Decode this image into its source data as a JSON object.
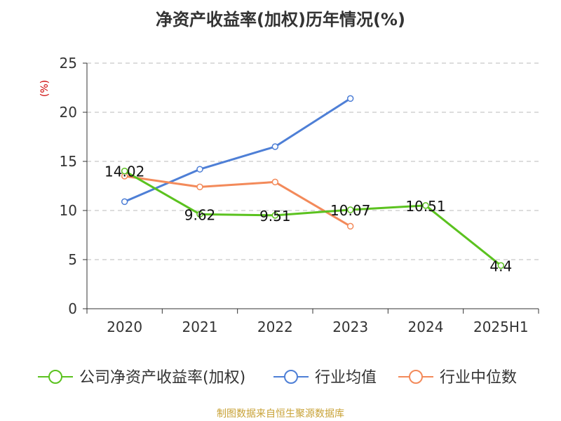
{
  "chart_data": {
    "type": "line",
    "title": "净资产收益率(加权)历年情况(%)",
    "ylabel": "(%)",
    "categories": [
      "2020",
      "2021",
      "2022",
      "2023",
      "2024",
      "2025H1"
    ],
    "ylim": [
      0,
      25
    ],
    "yticks": [
      0,
      5,
      10,
      15,
      20,
      25
    ],
    "grid": true,
    "legend_position": "bottom",
    "series": [
      {
        "name": "公司净资产收益率(加权)",
        "color": "#5bc21f",
        "values": [
          14.02,
          9.62,
          9.51,
          10.07,
          10.51,
          4.4
        ],
        "labels": [
          "14.02",
          "9.62",
          "9.51",
          "10.07",
          "10.51",
          "4.4"
        ]
      },
      {
        "name": "行业均值",
        "color": "#4e7fd6",
        "values": [
          10.9,
          14.2,
          16.5,
          21.4,
          null,
          null
        ]
      },
      {
        "name": "行业中位数",
        "color": "#f38a5a",
        "values": [
          13.5,
          12.4,
          12.9,
          8.4,
          null,
          null
        ]
      }
    ]
  },
  "source": "制图数据来自恒生聚源数据库"
}
